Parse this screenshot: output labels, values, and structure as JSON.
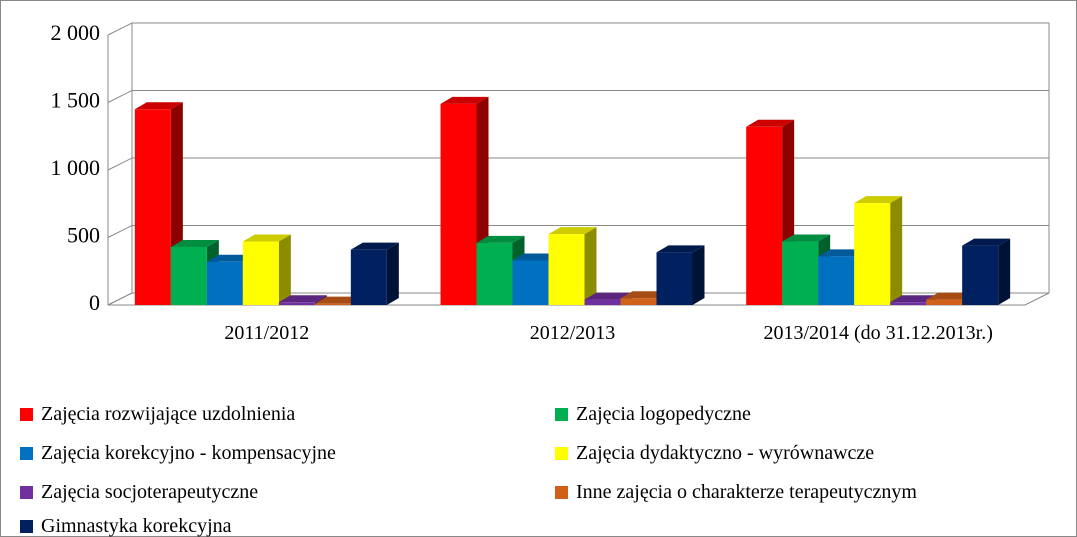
{
  "chart_data": {
    "type": "bar3d",
    "categories": [
      "2011/2012",
      "2012/2013",
      "2013/2014 (do 31.12.2013r.)"
    ],
    "series": [
      {
        "name": "Zajęcia rozwijające uzdolnienia",
        "color": "#ff0000",
        "values": [
          1450,
          1490,
          1320
        ]
      },
      {
        "name": "Zajęcia logopedyczne",
        "color": "#00b050",
        "values": [
          430,
          460,
          470
        ]
      },
      {
        "name": "Zajęcia korekcyjno - kompensacyjne",
        "color": "#0070c0",
        "values": [
          320,
          330,
          360
        ]
      },
      {
        "name": "Zajęcia dydaktyczno - wyrównawcze",
        "color": "#ffff00",
        "values": [
          470,
          525,
          755
        ]
      },
      {
        "name": "Zajęcia socjoterapeutyczne",
        "color": "#7030a0",
        "values": [
          20,
          40,
          20
        ]
      },
      {
        "name": "Inne zajęcia o charakterze terapeutycznym",
        "color": "#d0601a",
        "values": [
          10,
          50,
          40
        ]
      },
      {
        "name": "Gimnastyka korekcyjna",
        "color": "#002060",
        "values": [
          410,
          390,
          440
        ]
      }
    ],
    "ylim": [
      0,
      2000
    ],
    "yticks": [
      0,
      500,
      {
        "value": 1000,
        "label": "1 000"
      },
      {
        "value": 1500,
        "label": "1 500"
      },
      {
        "value": 2000,
        "label": "2 000"
      }
    ],
    "grid": true
  }
}
